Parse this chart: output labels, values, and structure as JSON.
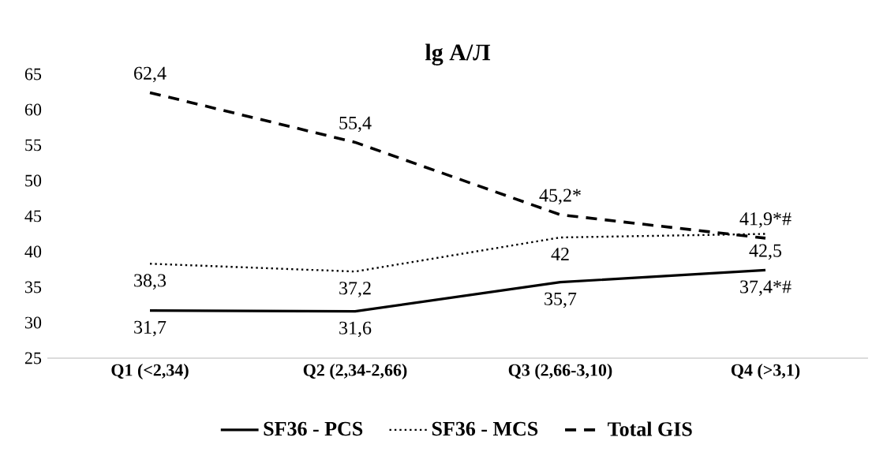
{
  "chart_data": {
    "type": "line",
    "title": "lg А/Л",
    "categories": [
      "Q1 (<2,34)",
      "Q2 (2,34-2,66)",
      "Q3 (2,66-3,10)",
      "Q4 (>3,1)"
    ],
    "series": [
      {
        "name": "SF36 - PCS",
        "color": "#000000",
        "line_style": "solid",
        "values": [
          31.7,
          31.6,
          35.7,
          37.4
        ],
        "value_labels": [
          "31,7",
          "31,6",
          "35,7",
          "37,4*#"
        ]
      },
      {
        "name": "SF36 - MCS",
        "color": "#000000",
        "line_style": "dotted",
        "values": [
          38.3,
          37.2,
          42,
          42.5
        ],
        "value_labels": [
          "38,3",
          "37,2",
          "42",
          "42,5"
        ]
      },
      {
        "name": "Total GIS",
        "color": "#000000",
        "line_style": "dashed",
        "values": [
          62.4,
          55.4,
          45.2,
          41.9
        ],
        "value_labels": [
          "62,4",
          "55,4",
          "45,2*",
          "41,9*#"
        ]
      }
    ],
    "ylim": [
      25,
      65
    ],
    "yticks": [
      25,
      30,
      35,
      40,
      45,
      50,
      55,
      60,
      65
    ],
    "grid": false,
    "legend": "bottom",
    "marker": "none"
  }
}
